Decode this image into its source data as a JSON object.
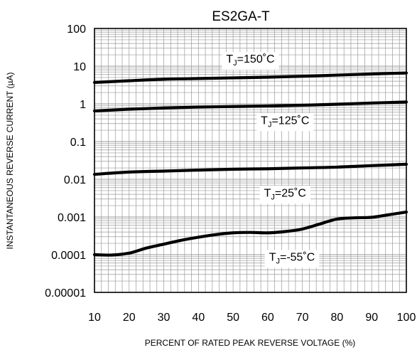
{
  "chart_data": {
    "type": "line",
    "title": "ES2GA-T",
    "xlabel": "PERCENT OF RATED PEAK REVERSE VOLTAGE (%)",
    "ylabel": "INSTANTANEOUS REVERSE CURRENT (µA)",
    "xlim": [
      10,
      100
    ],
    "ylim": [
      1e-05,
      100
    ],
    "yscale": "log",
    "grid": true,
    "x_ticks": [
      "10",
      "20",
      "30",
      "40",
      "50",
      "60",
      "70",
      "80",
      "90",
      "100"
    ],
    "y_ticks": [
      "100",
      "10",
      "1",
      "0.1",
      "0.01",
      "0.001",
      "0.0001",
      "0.00001"
    ],
    "series": [
      {
        "label": {
          "pre": "T",
          "sub": "J",
          "post": "=150˚C"
        },
        "label_at": {
          "x": 55,
          "y": 16
        },
        "x": [
          10,
          20,
          30,
          40,
          50,
          60,
          70,
          80,
          90,
          100
        ],
        "y": [
          3.7,
          4.1,
          4.5,
          4.7,
          4.9,
          5.1,
          5.4,
          5.8,
          6.2,
          6.6
        ]
      },
      {
        "label": {
          "pre": "T",
          "sub": "J",
          "post": "=125˚C"
        },
        "label_at": {
          "x": 65,
          "y": 0.38
        },
        "x": [
          10,
          20,
          30,
          40,
          50,
          60,
          70,
          80,
          90,
          100
        ],
        "y": [
          0.65,
          0.72,
          0.78,
          0.82,
          0.85,
          0.88,
          0.92,
          0.98,
          1.05,
          1.12
        ]
      },
      {
        "label": {
          "pre": "T",
          "sub": "J",
          "post": "=25˚C"
        },
        "label_at": {
          "x": 65,
          "y": 0.0045
        },
        "x": [
          10,
          20,
          30,
          40,
          50,
          60,
          70,
          80,
          90,
          100
        ],
        "y": [
          0.0135,
          0.0155,
          0.0165,
          0.0175,
          0.0185,
          0.019,
          0.02,
          0.021,
          0.023,
          0.025
        ]
      },
      {
        "label": {
          "pre": "T",
          "sub": "J",
          "post": "=-55˚C"
        },
        "label_at": {
          "x": 67,
          "y": 9e-05
        },
        "x": [
          10,
          15,
          20,
          25,
          30,
          35,
          40,
          45,
          50,
          55,
          60,
          65,
          70,
          75,
          80,
          85,
          90,
          95,
          100
        ],
        "y": [
          0.0001,
          9.8e-05,
          0.00011,
          0.00015,
          0.00019,
          0.00024,
          0.00029,
          0.00034,
          0.00038,
          0.00039,
          0.00038,
          0.00041,
          0.00048,
          0.00065,
          0.00088,
          0.00095,
          0.00098,
          0.00115,
          0.00135
        ]
      }
    ]
  },
  "style": {
    "line_color": "#000000",
    "grid_color": "#9a9a9a",
    "label_bg": "#ffffff"
  }
}
